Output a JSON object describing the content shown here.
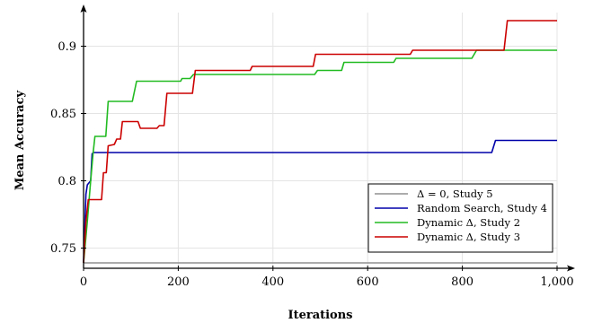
{
  "chart_data": {
    "type": "line",
    "xlabel": "Iterations",
    "ylabel": "Mean Accuracy",
    "xlim": [
      0,
      1000
    ],
    "ylim": [
      0.735,
      0.925
    ],
    "xticks": [
      0,
      200,
      400,
      600,
      800,
      1000
    ],
    "xtick_labels": [
      "0",
      "200",
      "400",
      "600",
      "800",
      "1,000"
    ],
    "yticks": [
      0.75,
      0.8,
      0.85,
      0.9
    ],
    "ytick_labels": [
      "0.75",
      "0.8",
      "0.85",
      "0.9"
    ],
    "grid": true,
    "legend_position": "bottom-right",
    "series": [
      {
        "name": "Δ = 0, Study 5",
        "color": "#909090",
        "points": [
          [
            0,
            0.739
          ],
          [
            1000,
            0.739
          ]
        ]
      },
      {
        "name": "Random Search, Study 4",
        "color": "#0000aa",
        "points": [
          [
            0,
            0.739
          ],
          [
            5,
            0.79
          ],
          [
            8,
            0.797
          ],
          [
            15,
            0.8
          ],
          [
            18,
            0.82
          ],
          [
            21,
            0.821
          ],
          [
            862,
            0.821
          ],
          [
            870,
            0.83
          ],
          [
            1000,
            0.83
          ]
        ]
      },
      {
        "name": "Dynamic Δ, Study 2",
        "color": "#22bb22",
        "points": [
          [
            0,
            0.739
          ],
          [
            8,
            0.77
          ],
          [
            15,
            0.8
          ],
          [
            20,
            0.82
          ],
          [
            24,
            0.833
          ],
          [
            47,
            0.833
          ],
          [
            52,
            0.859
          ],
          [
            103,
            0.859
          ],
          [
            112,
            0.874
          ],
          [
            205,
            0.874
          ],
          [
            208,
            0.876
          ],
          [
            225,
            0.876
          ],
          [
            232,
            0.879
          ],
          [
            488,
            0.879
          ],
          [
            494,
            0.882
          ],
          [
            545,
            0.882
          ],
          [
            550,
            0.888
          ],
          [
            655,
            0.888
          ],
          [
            660,
            0.891
          ],
          [
            820,
            0.891
          ],
          [
            830,
            0.897
          ],
          [
            1000,
            0.897
          ]
        ]
      },
      {
        "name": "Dynamic Δ, Study 3",
        "color": "#cc0000",
        "points": [
          [
            0,
            0.739
          ],
          [
            5,
            0.77
          ],
          [
            10,
            0.786
          ],
          [
            38,
            0.786
          ],
          [
            42,
            0.806
          ],
          [
            48,
            0.806
          ],
          [
            52,
            0.826
          ],
          [
            65,
            0.827
          ],
          [
            70,
            0.831
          ],
          [
            78,
            0.831
          ],
          [
            82,
            0.844
          ],
          [
            115,
            0.844
          ],
          [
            120,
            0.839
          ],
          [
            155,
            0.839
          ],
          [
            160,
            0.841
          ],
          [
            170,
            0.841
          ],
          [
            176,
            0.865
          ],
          [
            230,
            0.865
          ],
          [
            236,
            0.882
          ],
          [
            352,
            0.882
          ],
          [
            356,
            0.885
          ],
          [
            485,
            0.885
          ],
          [
            490,
            0.894
          ],
          [
            690,
            0.894
          ],
          [
            695,
            0.897
          ],
          [
            888,
            0.897
          ],
          [
            895,
            0.919
          ],
          [
            1000,
            0.919
          ]
        ]
      }
    ]
  }
}
